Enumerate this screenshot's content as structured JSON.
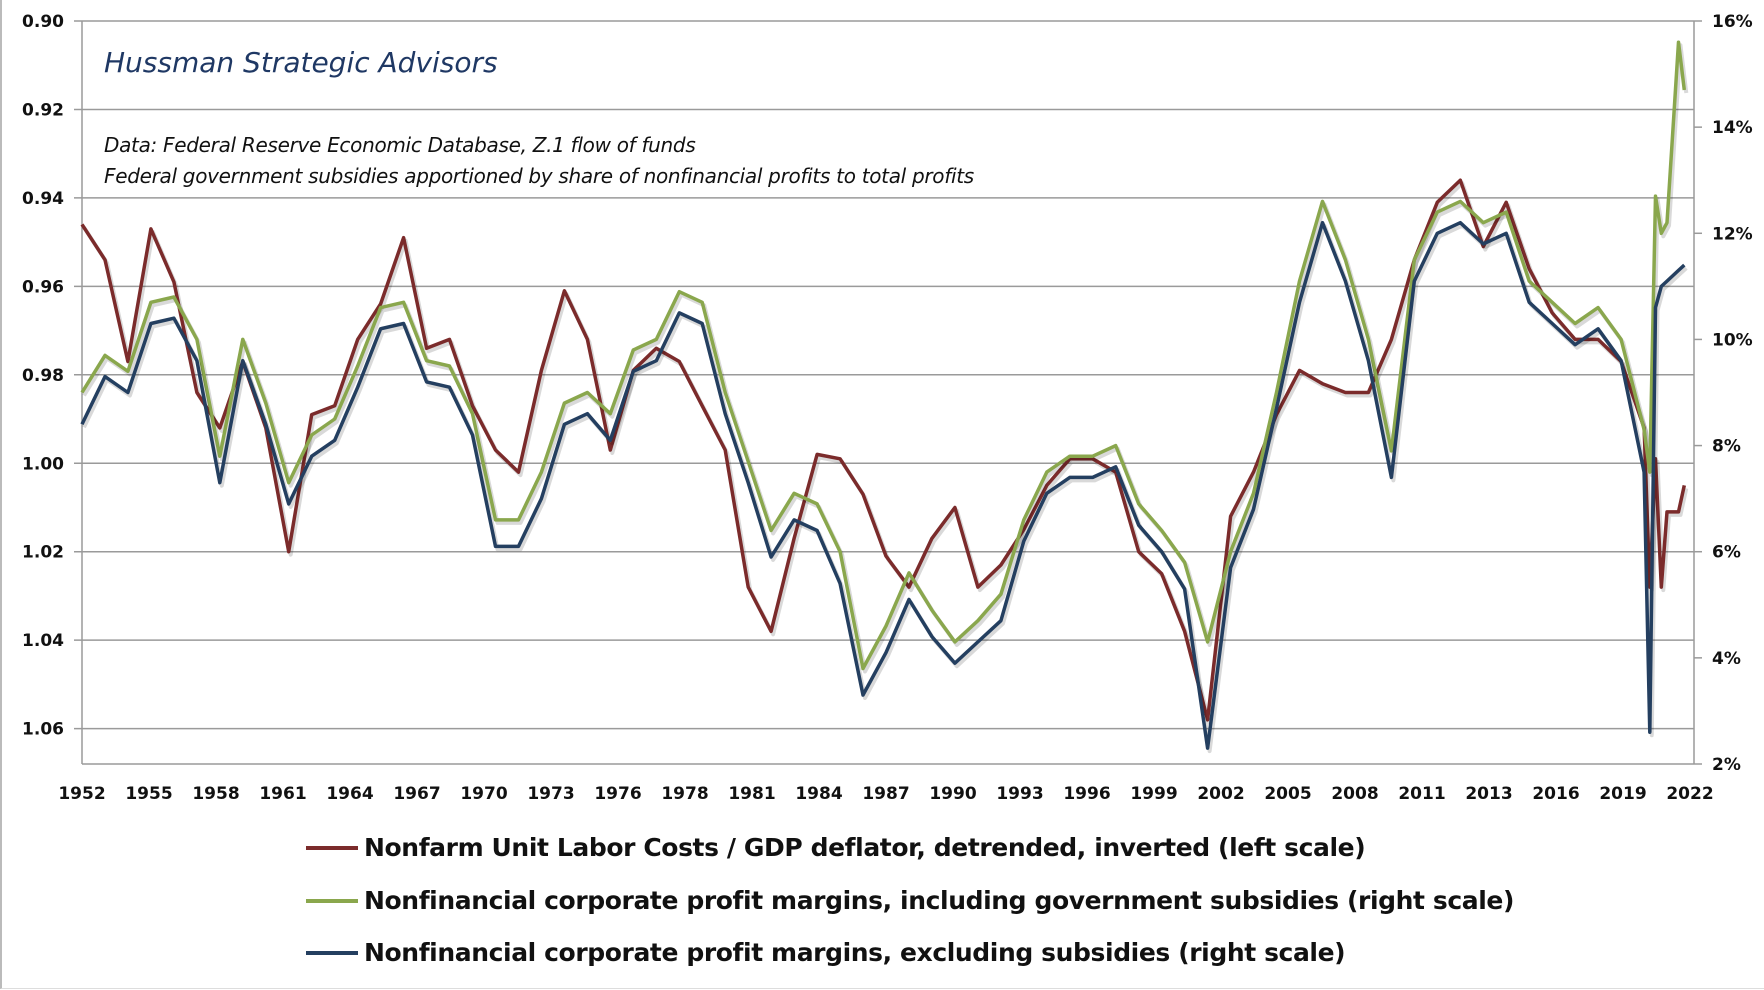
{
  "chart_data": {
    "type": "line",
    "annotations": {
      "brand": "Hussman Strategic Advisors",
      "source": "Data: Federal Reserve Economic Database, Z.1 flow of funds",
      "note": "Federal government subsidies apportioned by share of nonfinancial profits to total profits"
    },
    "x_range": [
      1952,
      2022
    ],
    "x_tick_labels": [
      "1952",
      "1955",
      "1958",
      "1961",
      "1964",
      "1967",
      "1970",
      "1973",
      "1976",
      "1978",
      "1981",
      "1984",
      "1987",
      "1990",
      "1993",
      "1996",
      "1999",
      "2002",
      "2005",
      "2008",
      "2011",
      "2013",
      "2016",
      "2019",
      "2022"
    ],
    "left_axis": {
      "range": [
        0.9,
        1.068
      ],
      "inverted": true,
      "ticks": [
        "0.90",
        "0.92",
        "0.94",
        "0.96",
        "0.98",
        "1.00",
        "1.02",
        "1.04",
        "1.06"
      ]
    },
    "right_axis": {
      "range": [
        2,
        16
      ],
      "ticks": [
        "2%",
        "4%",
        "6%",
        "8%",
        "10%",
        "12%",
        "14%",
        "16%"
      ]
    },
    "grid": "horizontal",
    "legend_placement": "bottom",
    "x": [
      1952,
      1953,
      1954,
      1955,
      1956,
      1957,
      1958,
      1959,
      1960,
      1961,
      1962,
      1963,
      1964,
      1965,
      1966,
      1967,
      1968,
      1969,
      1970,
      1971,
      1972,
      1973,
      1974,
      1975,
      1976,
      1977,
      1978,
      1979,
      1980,
      1981,
      1982,
      1983,
      1984,
      1985,
      1986,
      1987,
      1988,
      1989,
      1990,
      1991,
      1992,
      1993,
      1994,
      1995,
      1996,
      1997,
      1998,
      1999,
      2000,
      2001,
      2002,
      2003,
      2004,
      2005,
      2006,
      2007,
      2008,
      2009,
      2010,
      2011,
      2012,
      2013,
      2014,
      2015,
      2016,
      2017,
      2018,
      2019,
      2020,
      2020.25,
      2020.5,
      2020.75,
      2021,
      2021.5,
      2021.75
    ],
    "series": [
      {
        "name": "Nonfarm Unit Labor Costs / GDP deflator, detrended, inverted (left scale)",
        "axis": "left",
        "color": "#7b2b2b",
        "values": [
          0.946,
          0.954,
          0.977,
          0.947,
          0.959,
          0.984,
          0.992,
          0.977,
          0.992,
          1.02,
          0.989,
          0.987,
          0.972,
          0.964,
          0.949,
          0.974,
          0.972,
          0.987,
          0.997,
          1.002,
          0.979,
          0.961,
          0.972,
          0.997,
          0.979,
          0.974,
          0.977,
          0.987,
          0.997,
          1.028,
          1.038,
          1.017,
          0.998,
          0.999,
          1.007,
          1.021,
          1.028,
          1.017,
          1.01,
          1.028,
          1.023,
          1.015,
          1.005,
          0.999,
          0.999,
          1.002,
          1.02,
          1.025,
          1.038,
          1.058,
          1.012,
          1.002,
          0.989,
          0.979,
          0.982,
          0.984,
          0.984,
          0.972,
          0.954,
          0.941,
          0.936,
          0.951,
          0.941,
          0.956,
          0.966,
          0.972,
          0.972,
          0.977,
          0.992,
          1.028,
          0.999,
          1.028,
          1.011,
          1.011,
          1.005
        ]
      },
      {
        "name": "Nonfinancial corporate profit margins, including government subsidies (right scale)",
        "axis": "right",
        "color": "#8aa74d",
        "values": [
          9.0,
          9.7,
          9.4,
          10.7,
          10.8,
          10.0,
          7.8,
          10.0,
          8.8,
          7.3,
          8.2,
          8.5,
          9.5,
          10.6,
          10.7,
          9.6,
          9.5,
          8.6,
          6.6,
          6.6,
          7.5,
          8.8,
          9.0,
          8.6,
          9.8,
          10.0,
          10.9,
          10.7,
          9.0,
          7.7,
          6.4,
          7.1,
          6.9,
          6.0,
          3.8,
          4.6,
          5.6,
          4.9,
          4.3,
          4.7,
          5.2,
          6.6,
          7.5,
          7.8,
          7.8,
          8.0,
          6.9,
          6.4,
          5.8,
          4.3,
          6.0,
          7.1,
          9.0,
          11.1,
          12.6,
          11.5,
          10.0,
          7.9,
          11.5,
          12.4,
          12.6,
          12.2,
          12.4,
          11.1,
          10.7,
          10.3,
          10.6,
          10.0,
          8.3,
          7.5,
          12.7,
          12.0,
          12.2,
          15.6,
          14.7
        ]
      },
      {
        "name": "Nonfinancial corporate profit margins, excluding subsidies (right scale)",
        "axis": "right",
        "color": "#243f60",
        "values": [
          8.4,
          9.3,
          9.0,
          10.3,
          10.4,
          9.6,
          7.3,
          9.6,
          8.4,
          6.9,
          7.8,
          8.1,
          9.1,
          10.2,
          10.3,
          9.2,
          9.1,
          8.2,
          6.1,
          6.1,
          7.0,
          8.4,
          8.6,
          8.1,
          9.4,
          9.6,
          10.5,
          10.3,
          8.6,
          7.3,
          5.9,
          6.6,
          6.4,
          5.4,
          3.3,
          4.1,
          5.1,
          4.4,
          3.9,
          4.3,
          4.7,
          6.2,
          7.1,
          7.4,
          7.4,
          7.6,
          6.5,
          6.0,
          5.3,
          2.3,
          5.7,
          6.8,
          8.7,
          10.7,
          12.2,
          11.1,
          9.6,
          7.4,
          11.1,
          12.0,
          12.2,
          11.8,
          12.0,
          10.7,
          10.3,
          9.9,
          10.2,
          9.6,
          7.5,
          2.6,
          10.6,
          11.0,
          11.1,
          11.3,
          11.4
        ]
      }
    ]
  }
}
